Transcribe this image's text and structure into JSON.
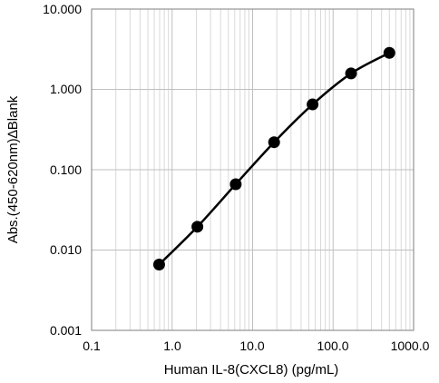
{
  "chart_data": {
    "type": "scatter",
    "xlabel": "Human IL-8(CXCL8) (pg/mL)",
    "ylabel": "Abs.(450-620nm)∆Blank",
    "xscale": "log",
    "yscale": "log",
    "xlim": [
      0.1,
      1000
    ],
    "ylim": [
      0.001,
      10
    ],
    "x_tick_labels": [
      "0.1",
      "1.0",
      "10.0",
      "100.0",
      "1000.0"
    ],
    "y_tick_labels": [
      "10.000",
      "1.000",
      "0.100",
      "0.010",
      "0.001"
    ],
    "grid": "major and minor",
    "legend": "none",
    "smooth_line": true,
    "series": [
      {
        "x": [
          0.69,
          2.06,
          6.17,
          18.5,
          55.6,
          167,
          500
        ],
        "y": [
          0.0066,
          0.0195,
          0.066,
          0.22,
          0.65,
          1.58,
          2.85
        ]
      }
    ],
    "colors": {
      "series": "#000000",
      "grid_major": "#bfbfbf",
      "grid_minor": "#d9d9d9"
    }
  }
}
